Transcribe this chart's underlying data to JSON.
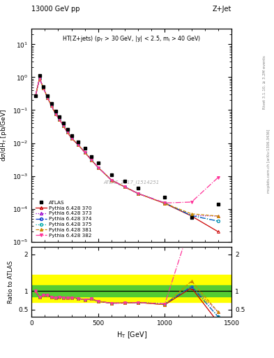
{
  "title_left": "13000 GeV pp",
  "title_right": "Z+Jet",
  "subtitle": "HT(Z+jets) (p_{T} > 30 GeV, |y| < 2.5, m_{l} > 40 GeV)",
  "ylabel_main": "d#sigma/dH_{T} [pb/GeV]",
  "ylabel_ratio": "Ratio to ATLAS",
  "xlabel": "H_{T} [GeV]",
  "watermark": "ATLAS_2017_I1514251",
  "atlas_x": [
    30,
    60,
    90,
    120,
    150,
    180,
    210,
    240,
    270,
    300,
    350,
    400,
    450,
    500,
    600,
    700,
    800,
    1000,
    1200,
    1400
  ],
  "atlas_y": [
    0.27,
    1.1,
    0.52,
    0.27,
    0.16,
    0.095,
    0.062,
    0.04,
    0.026,
    0.017,
    0.011,
    0.0068,
    0.0038,
    0.0025,
    0.0011,
    0.00068,
    0.00042,
    0.00023,
    5.5e-05,
    0.00014
  ],
  "py_x": [
    30,
    60,
    90,
    120,
    150,
    180,
    210,
    240,
    270,
    300,
    350,
    400,
    450,
    500,
    600,
    700,
    800,
    1000,
    1200,
    1400
  ],
  "py370_y": [
    0.27,
    0.92,
    0.46,
    0.24,
    0.135,
    0.077,
    0.052,
    0.033,
    0.021,
    0.014,
    0.0088,
    0.0052,
    0.003,
    0.0018,
    0.00074,
    0.00046,
    0.00029,
    0.000145,
    6e-05,
    2e-05
  ],
  "py373_y": [
    0.27,
    0.92,
    0.46,
    0.24,
    0.135,
    0.077,
    0.052,
    0.033,
    0.021,
    0.014,
    0.0088,
    0.0052,
    0.003,
    0.0018,
    0.00074,
    0.00046,
    0.00029,
    0.00015,
    6.2e-05,
    6e-05
  ],
  "py374_y": [
    0.27,
    0.92,
    0.46,
    0.24,
    0.135,
    0.077,
    0.052,
    0.033,
    0.021,
    0.014,
    0.0088,
    0.0052,
    0.003,
    0.0018,
    0.00074,
    0.00046,
    0.00029,
    0.00015,
    6.2e-05,
    4.2e-05
  ],
  "py375_y": [
    0.27,
    0.92,
    0.46,
    0.24,
    0.135,
    0.077,
    0.052,
    0.033,
    0.021,
    0.014,
    0.0088,
    0.0052,
    0.003,
    0.0018,
    0.00074,
    0.00046,
    0.00029,
    0.00015,
    6.2e-05,
    4.2e-05
  ],
  "py381_y": [
    0.27,
    0.92,
    0.46,
    0.24,
    0.135,
    0.077,
    0.052,
    0.033,
    0.021,
    0.014,
    0.0088,
    0.0052,
    0.003,
    0.0018,
    0.00074,
    0.00046,
    0.00029,
    0.000145,
    7e-05,
    6e-05
  ],
  "py382_y": [
    0.27,
    0.92,
    0.46,
    0.24,
    0.135,
    0.077,
    0.052,
    0.033,
    0.021,
    0.014,
    0.0088,
    0.0052,
    0.003,
    0.0018,
    0.00074,
    0.00046,
    0.00029,
    0.00015,
    0.00016,
    0.0009
  ],
  "color_370": "#cc0000",
  "color_373": "#9900cc",
  "color_374": "#0033cc",
  "color_375": "#00aaaa",
  "color_381": "#cc8800",
  "color_382": "#ff3399",
  "band_green_lo": 0.85,
  "band_green_hi": 1.15,
  "band_yellow_lo": 0.7,
  "band_yellow_hi": 1.45,
  "xlim": [
    0,
    1500
  ],
  "ylim_main": [
    1e-05,
    30
  ],
  "ylim_ratio": [
    0.3,
    2.2
  ]
}
